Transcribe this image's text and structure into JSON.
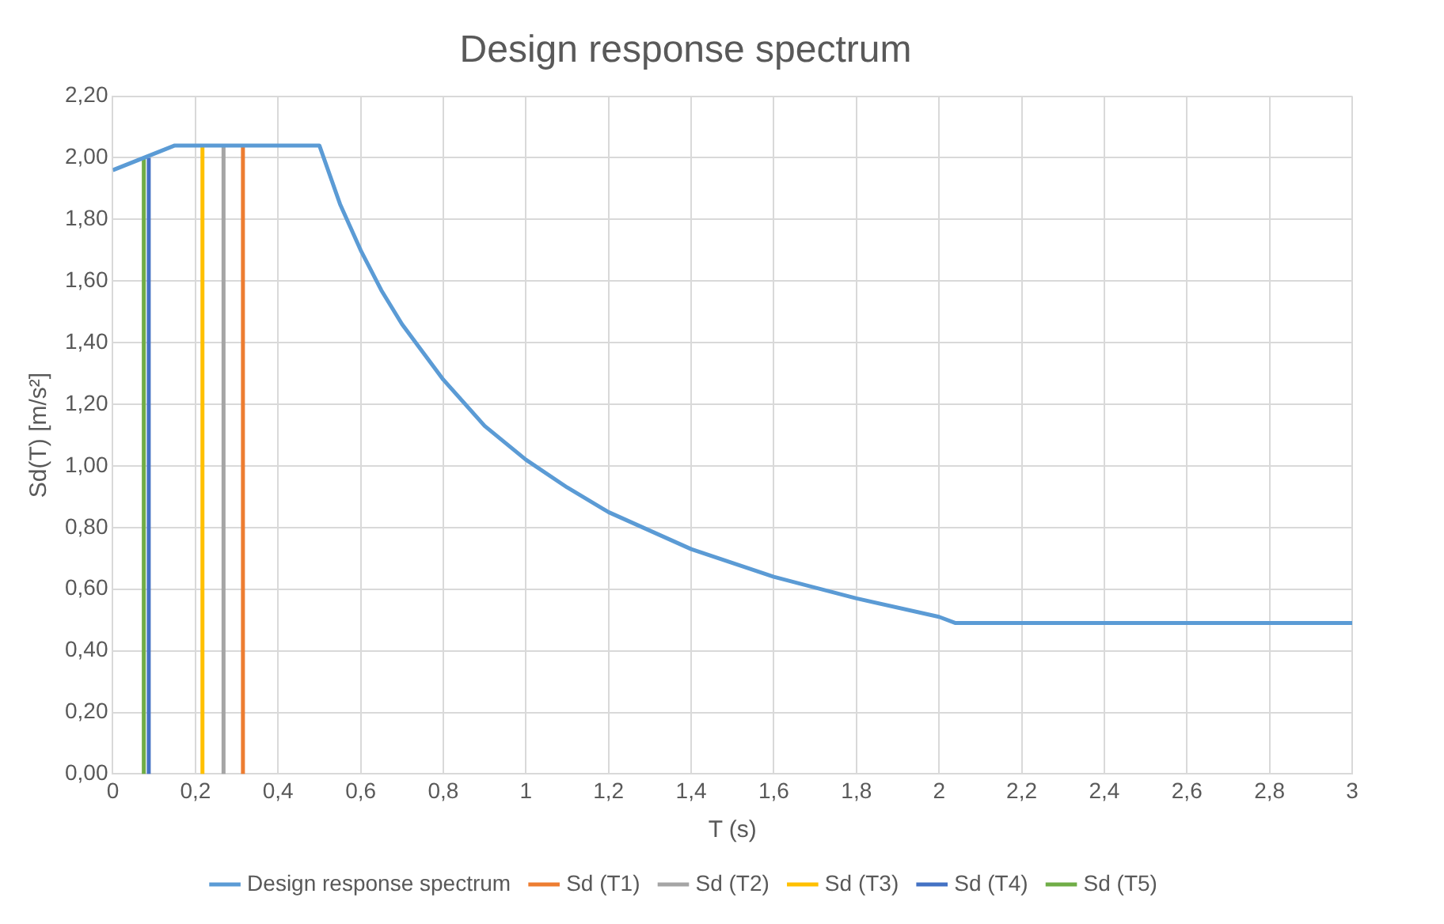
{
  "chart_data": {
    "type": "line",
    "title": "Design response spectrum",
    "xlabel": "T (s)",
    "ylabel": "Sd(T) [m/s²]",
    "xlim": [
      0,
      3
    ],
    "xticks": [
      0,
      {
        "value": 0.2,
        "label": "0,2"
      },
      {
        "value": 0.4,
        "label": "0,4"
      },
      {
        "value": 0.6,
        "label": "0,6"
      },
      {
        "value": 0.8,
        "label": "0,8"
      },
      1,
      {
        "value": 1.2,
        "label": "1,2"
      },
      {
        "value": 1.4,
        "label": "1,4"
      },
      {
        "value": 1.6,
        "label": "1,6"
      },
      {
        "value": 1.8,
        "label": "1,8"
      },
      2,
      {
        "value": 2.2,
        "label": "2,2"
      },
      {
        "value": 2.4,
        "label": "2,4"
      },
      {
        "value": 2.6,
        "label": "2,6"
      },
      {
        "value": 2.8,
        "label": "2,8"
      },
      3
    ],
    "ylim": [
      0,
      2.2
    ],
    "yticks": [
      {
        "value": 0,
        "label": "0,00"
      },
      {
        "value": 0.2,
        "label": "0,20"
      },
      {
        "value": 0.4,
        "label": "0,40"
      },
      {
        "value": 0.6,
        "label": "0,60"
      },
      {
        "value": 0.8,
        "label": "0,80"
      },
      {
        "value": 1,
        "label": "1,00"
      },
      {
        "value": 1.2,
        "label": "1,20"
      },
      {
        "value": 1.4,
        "label": "1,40"
      },
      {
        "value": 1.6,
        "label": "1,60"
      },
      {
        "value": 1.8,
        "label": "1,80"
      },
      {
        "value": 2,
        "label": "2,00"
      },
      {
        "value": 2.2,
        "label": "2,20"
      }
    ],
    "grid": true,
    "legend": "bottom",
    "marker": "none",
    "line_style": "solid",
    "series": [
      {
        "name": "Design response spectrum",
        "color": "#5b9bd5",
        "x": [
          0,
          0.15,
          0.5,
          0.55,
          0.6,
          0.65,
          0.7,
          0.8,
          0.9,
          1.0,
          1.1,
          1.2,
          1.4,
          1.6,
          1.8,
          2.0,
          2.04,
          3
        ],
        "values": [
          1.96,
          2.04,
          2.04,
          1.85,
          1.7,
          1.57,
          1.46,
          1.28,
          1.13,
          1.02,
          0.93,
          0.85,
          0.73,
          0.64,
          0.57,
          0.51,
          0.49,
          0.49
        ]
      },
      {
        "name": "Sd (T1)",
        "color": "#ed7d31",
        "x": [
          0.315,
          0.315
        ],
        "values": [
          0,
          2.04
        ]
      },
      {
        "name": "Sd (T2)",
        "color": "#a5a5a5",
        "x": [
          0.268,
          0.268
        ],
        "values": [
          0,
          2.04
        ]
      },
      {
        "name": "Sd (T3)",
        "color": "#ffc000",
        "x": [
          0.217,
          0.217
        ],
        "values": [
          0,
          2.04
        ]
      },
      {
        "name": "Sd (T4)",
        "color": "#4472c4",
        "x": [
          0.087,
          0.087
        ],
        "values": [
          0,
          2.0
        ]
      },
      {
        "name": "Sd (T5)",
        "color": "#70ad47",
        "x": [
          0.075,
          0.075
        ],
        "values": [
          0,
          2.0
        ]
      }
    ]
  }
}
